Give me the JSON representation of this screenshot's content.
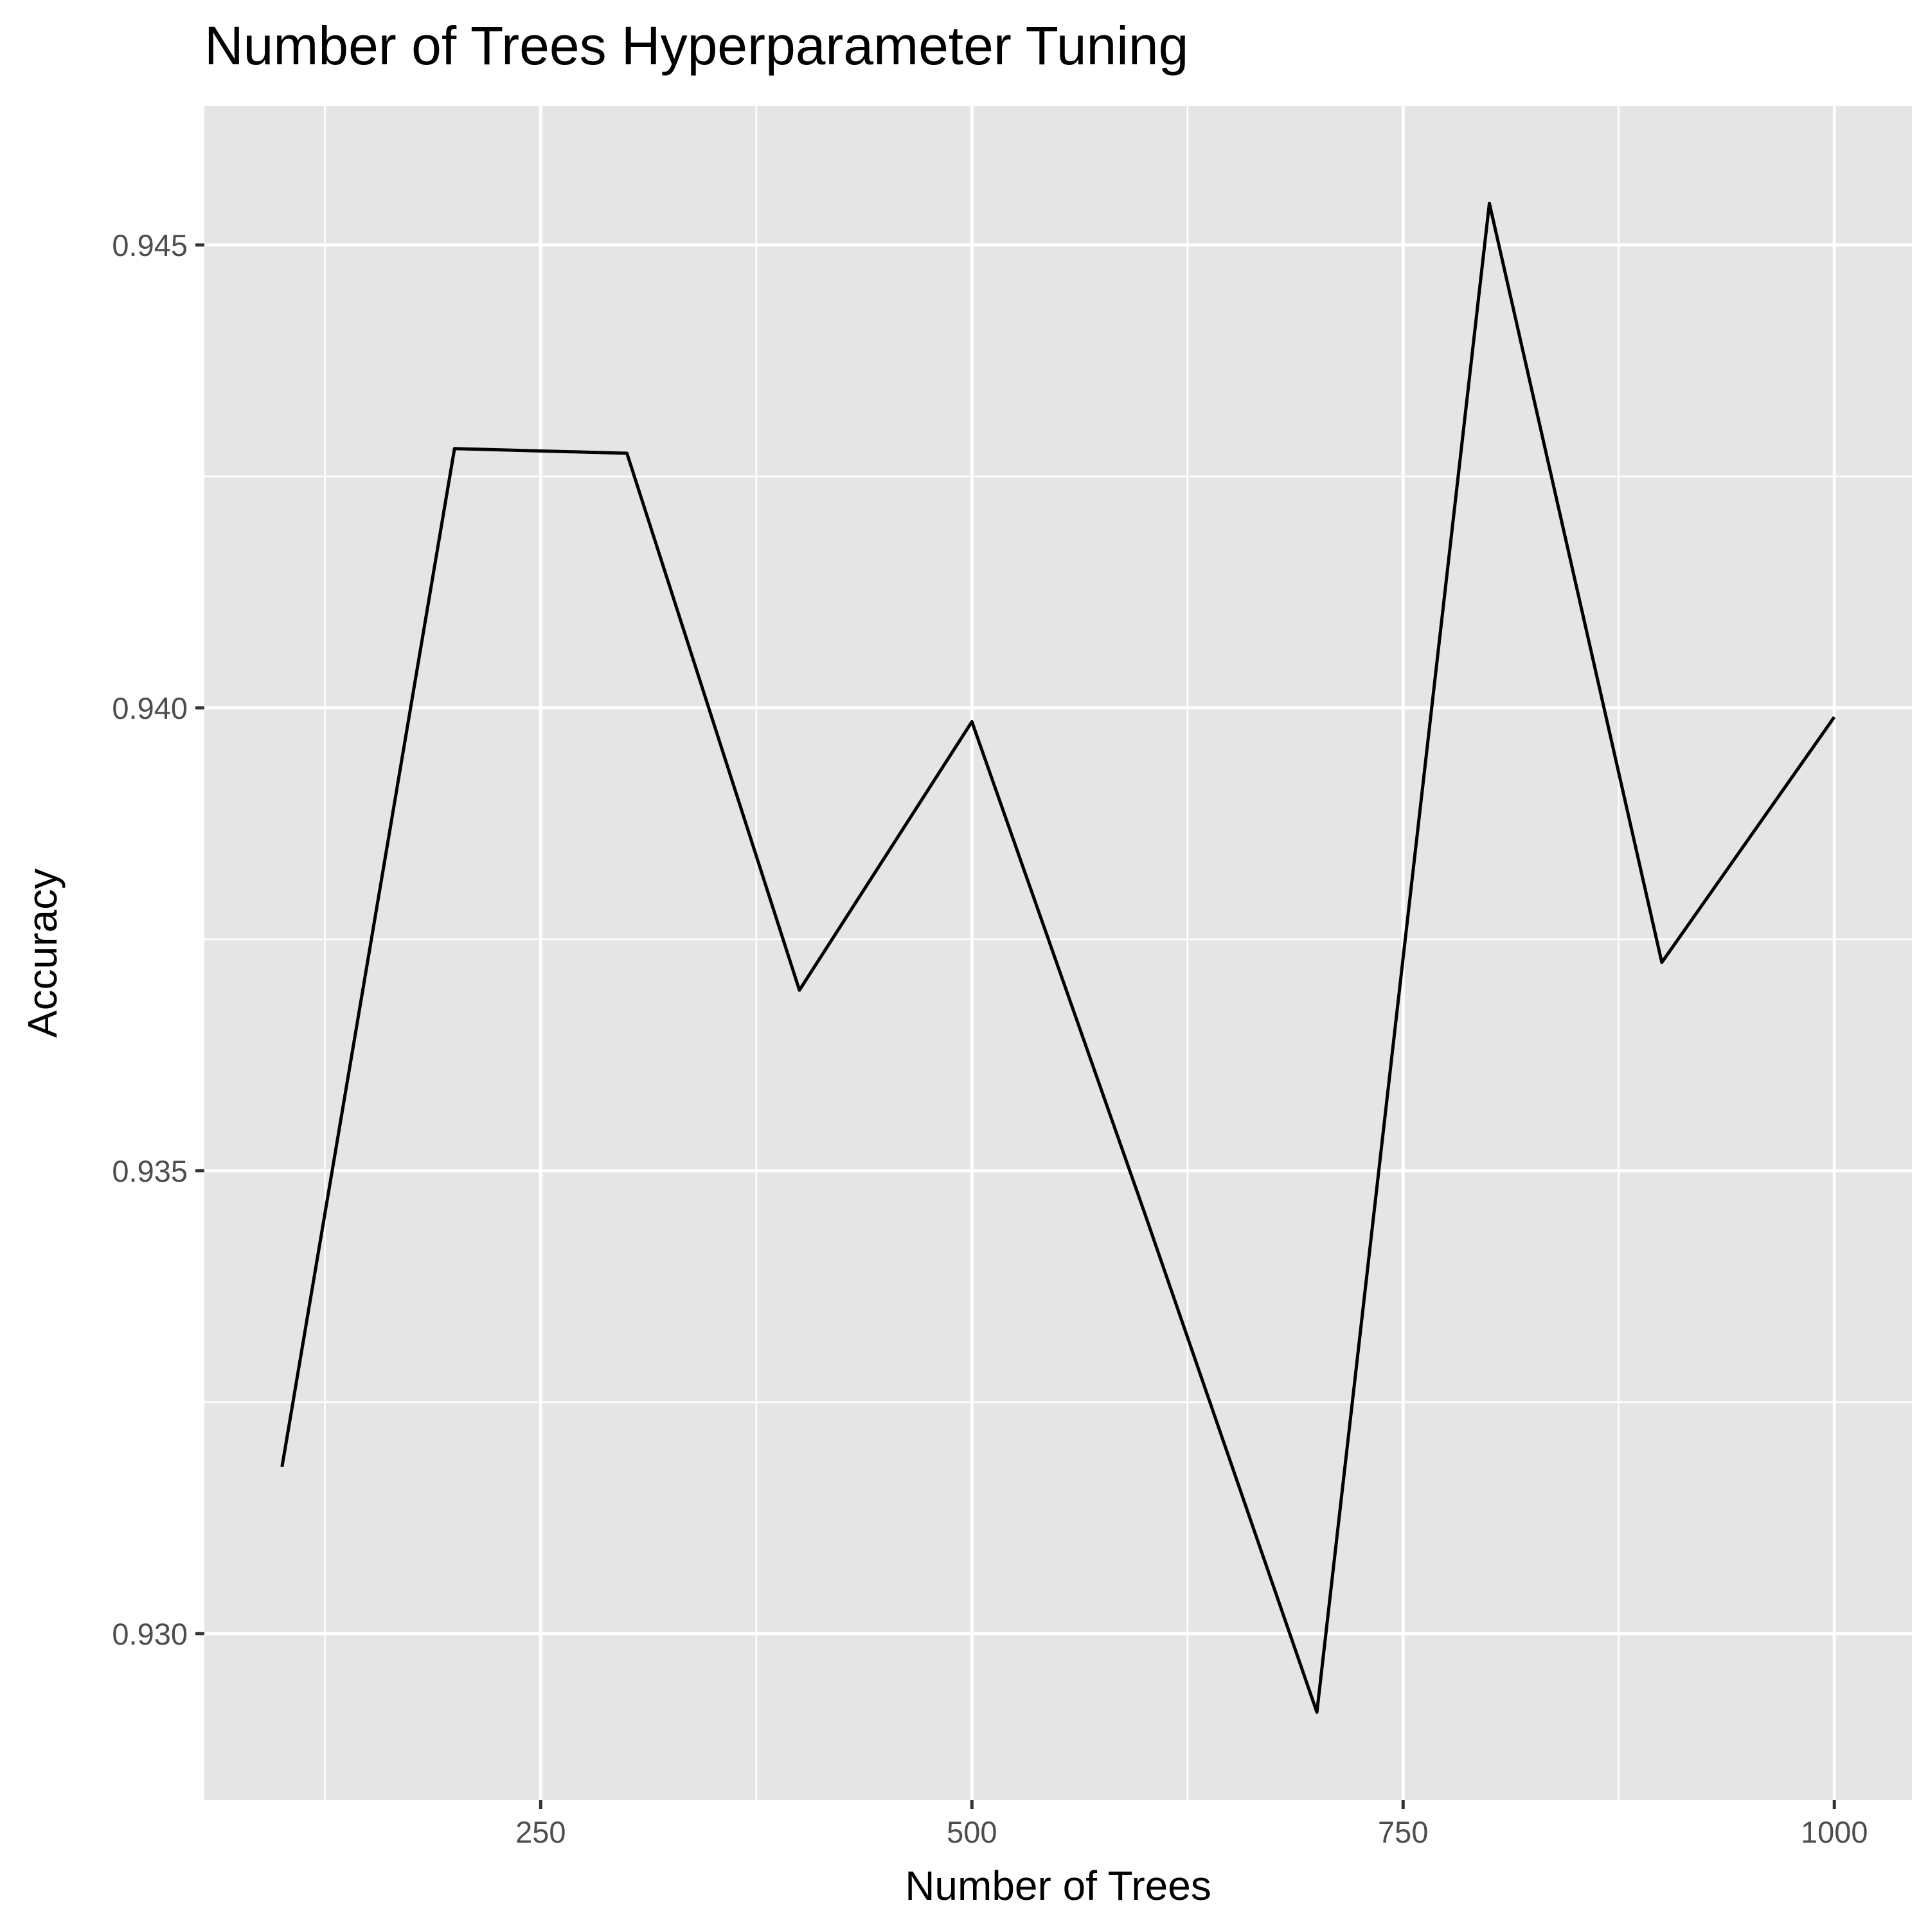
{
  "chart_data": {
    "type": "line",
    "title": "Number of Trees Hyperparameter Tuning",
    "xlabel": "Number of Trees",
    "ylabel": "Accuracy",
    "xlim": [
      55,
      1045
    ],
    "ylim": [
      0.9282,
      0.9465
    ],
    "x_ticks": [
      250,
      500,
      750,
      1000
    ],
    "x_tick_labels": [
      "250",
      "500",
      "750",
      "1000"
    ],
    "x_minor_ticks": [
      125,
      375,
      625,
      875
    ],
    "y_ticks": [
      0.93,
      0.935,
      0.94,
      0.945
    ],
    "y_tick_labels": [
      "0.930",
      "0.935",
      "0.940",
      "0.945"
    ],
    "y_minor_ticks": [
      0.9275,
      0.9325,
      0.9375,
      0.9425
    ],
    "grid": true,
    "legend": "none",
    "colors": {
      "panel_background": "#e5e5e5",
      "grid_line": "#ffffff",
      "line": "#000000",
      "tick_mark": "#333333"
    },
    "series": [
      {
        "x": [
          100,
          200,
          300,
          400,
          500,
          600,
          700,
          800,
          900,
          1000
        ],
        "y": [
          0.9318,
          0.9428,
          0.94275,
          0.93695,
          0.93985,
          0.93455,
          0.92915,
          0.94545,
          0.93725,
          0.9399
        ]
      }
    ]
  }
}
